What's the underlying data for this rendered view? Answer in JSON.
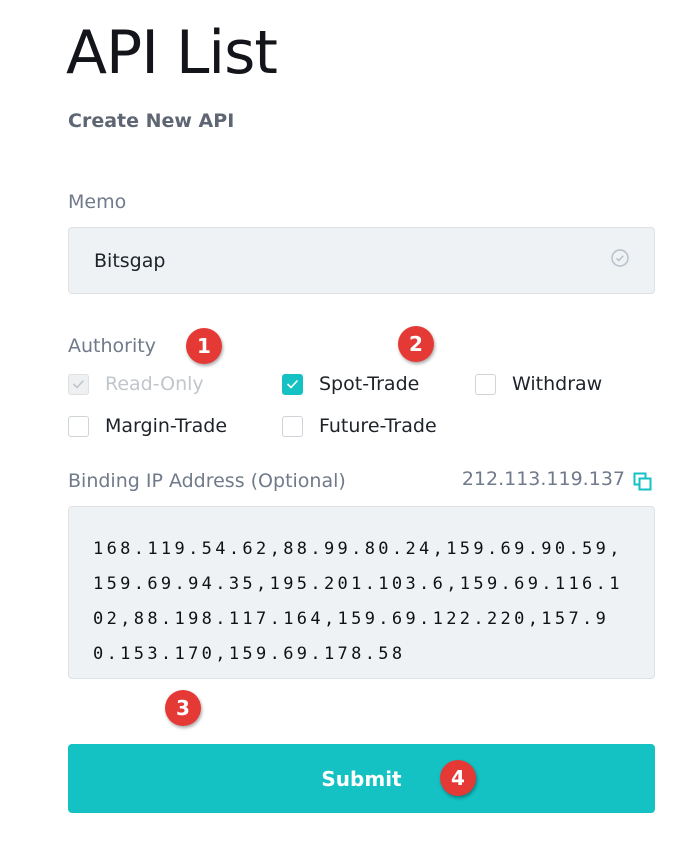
{
  "page": {
    "title": "API List",
    "subtitle": "Create New API"
  },
  "memo": {
    "label": "Memo",
    "value": "Bitsgap",
    "icon": "check-circle-icon"
  },
  "authority": {
    "label": "Authority",
    "options": [
      {
        "label": "Read-Only",
        "checked": true,
        "disabled": true
      },
      {
        "label": "Spot-Trade",
        "checked": true,
        "disabled": false
      },
      {
        "label": "Withdraw",
        "checked": false,
        "disabled": false
      },
      {
        "label": "Margin-Trade",
        "checked": false,
        "disabled": false
      },
      {
        "label": "Future-Trade",
        "checked": false,
        "disabled": false
      }
    ]
  },
  "ip": {
    "label": "Binding IP Address (Optional)",
    "current_ip": "212.113.119.137",
    "value": "168.119.54.62,88.99.80.24,159.69.90.59,159.69.94.35,195.201.103.6,159.69.116.102,88.198.117.164,159.69.122.220,157.90.153.170,159.69.178.58"
  },
  "submit": {
    "label": "Submit"
  },
  "badges": [
    "1",
    "2",
    "3",
    "4"
  ],
  "colors": {
    "accent": "#14c1c3",
    "badge": "#e53935"
  }
}
